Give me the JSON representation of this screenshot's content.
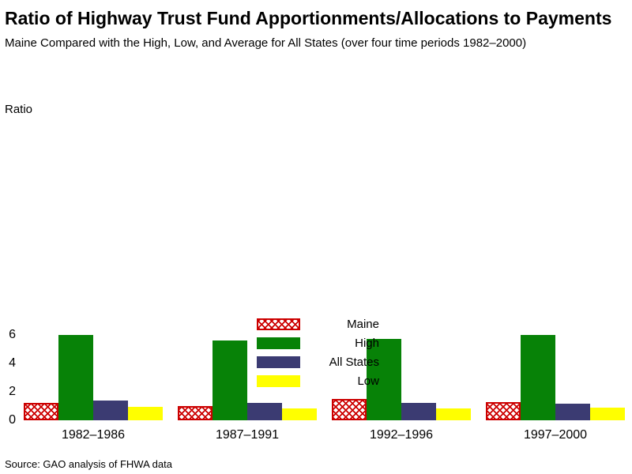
{
  "title": "Ratio of Highway Trust Fund Apportionments/Allocations to Payments",
  "subtitle": "Maine Compared with the High, Low, and Average for All States (over four time periods 1982–2000)",
  "source": "Source: GAO analysis of FHWA data",
  "chart_data": {
    "type": "bar",
    "title": "Ratio of Highway Trust Fund Apportionments/Allocations to Payments",
    "xlabel": "",
    "ylabel": "Ratio",
    "ylim": [
      0,
      6.5
    ],
    "yticks": [
      0,
      2,
      4,
      6
    ],
    "grid": false,
    "legend_position": "bottom-center",
    "categories": [
      "1982–1986",
      "1987–1991",
      "1992–1996",
      "1997–2000"
    ],
    "series": [
      {
        "name": "Maine",
        "color": "crosshatch-red",
        "values": [
          1.2,
          1.0,
          1.5,
          1.3
        ]
      },
      {
        "name": "High",
        "color": "#078207",
        "values": [
          6.0,
          5.6,
          5.7,
          6.0
        ]
      },
      {
        "name": "All States",
        "color": "#3b3b72",
        "values": [
          1.4,
          1.2,
          1.2,
          1.15
        ]
      },
      {
        "name": "Low",
        "color": "#ffff00",
        "values": [
          0.95,
          0.85,
          0.85,
          0.9
        ]
      }
    ]
  }
}
